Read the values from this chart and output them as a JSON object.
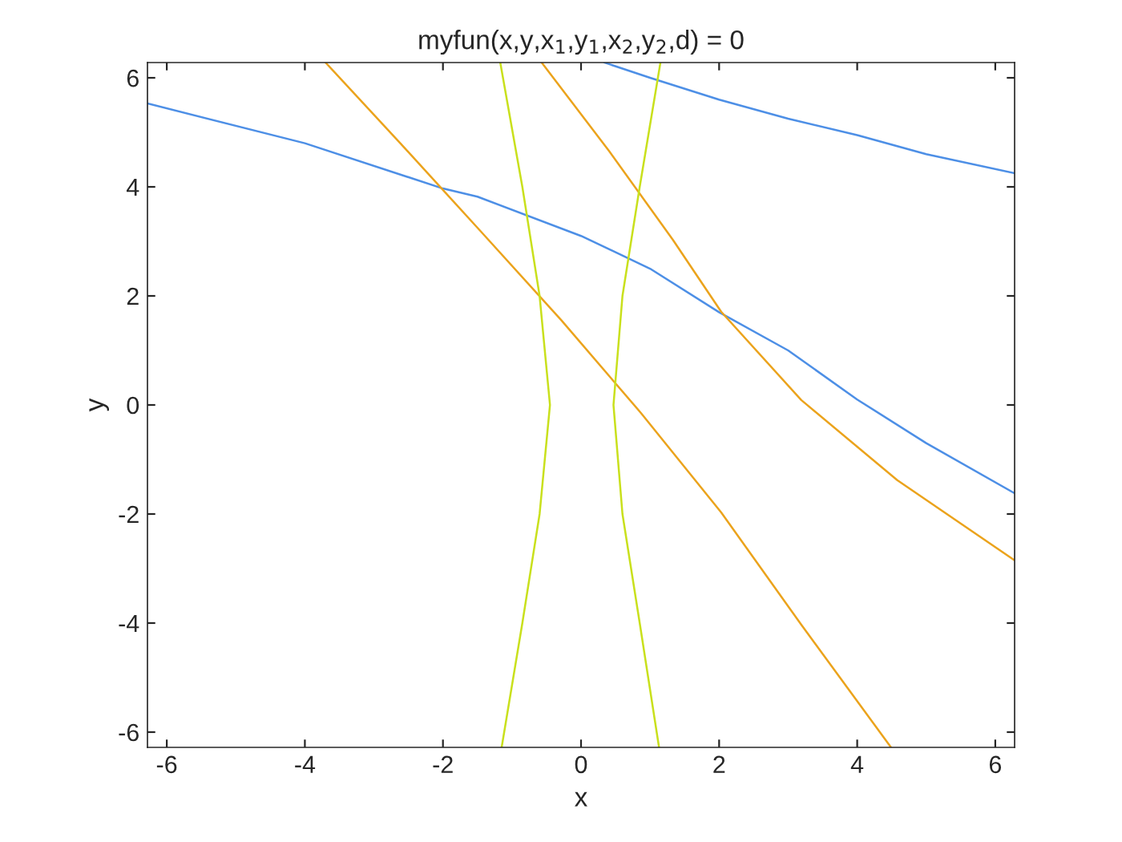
{
  "chart_data": {
    "type": "line",
    "title": "myfun(x,y,x$_{1}$,y$_{1}$,x$_{2}$,y$_{2}$,d) = 0",
    "xlabel": "x",
    "ylabel": "y",
    "xlim": [
      -6.28,
      6.28
    ],
    "ylim": [
      -6.28,
      6.28
    ],
    "xticks": [
      -6,
      -4,
      -2,
      0,
      2,
      4,
      6
    ],
    "yticks": [
      -6,
      -4,
      -2,
      0,
      2,
      4,
      6
    ],
    "grid": false,
    "marker": "none",
    "line_style": "solid",
    "series": [
      {
        "color": "#4d8fe6",
        "x": [
          -6.28,
          -4,
          -2,
          -1.5,
          0,
          1,
          2,
          3,
          4,
          5,
          6.28
        ],
        "values": [
          5.53,
          4.8,
          3.97,
          3.82,
          3.1,
          2.5,
          1.7,
          1.0,
          0.1,
          -0.7,
          -1.62
        ]
      },
      {
        "color": "#4d8fe6",
        "x": [
          0.34,
          1,
          2,
          3,
          4,
          5,
          6.28
        ],
        "values": [
          6.28,
          6.0,
          5.6,
          5.25,
          4.95,
          4.6,
          4.25
        ]
      },
      {
        "color": "#eba31c",
        "x": [
          -3.7,
          -2.61,
          -1.45,
          -0.29,
          0.87,
          2.03,
          3.19,
          4.49
        ],
        "values": [
          6.28,
          4.79,
          3.18,
          1.56,
          -0.15,
          -1.97,
          -4.03,
          -6.28
        ]
      },
      {
        "color": "#eba31c",
        "x": [
          -0.57,
          0.41,
          1.33,
          2.03,
          3.19,
          4.58,
          6.28
        ],
        "values": [
          6.28,
          4.65,
          3.03,
          1.71,
          0.09,
          -1.38,
          -2.85
        ]
      },
      {
        "color": "#c9e01c",
        "x": [
          -1.17,
          -0.85,
          -0.6,
          -0.45,
          -0.6,
          -0.85,
          -1.15
        ],
        "values": [
          6.28,
          4,
          2,
          0,
          -2,
          -4,
          -6.28
        ]
      },
      {
        "color": "#c9e01c",
        "x": [
          1.15,
          0.85,
          0.6,
          0.47,
          0.6,
          0.85,
          1.13
        ],
        "values": [
          6.28,
          4,
          2,
          0,
          -2,
          -4,
          -6.28
        ]
      }
    ]
  }
}
